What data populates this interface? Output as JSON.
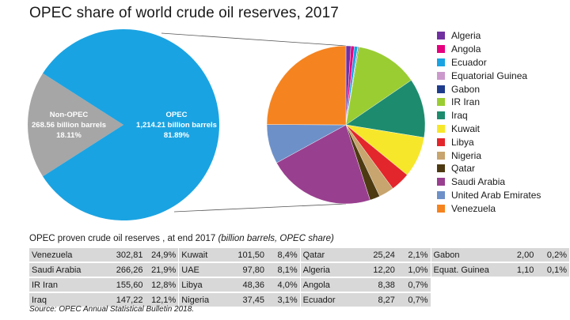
{
  "title": "OPEC share of world crude oil reserves, 2017",
  "chart_data": [
    {
      "type": "pie",
      "slices": [
        {
          "label": "Non-OPEC",
          "value": 268.56,
          "value_text": "268.56 billion barrels",
          "share_text": "18.11%",
          "color": "#a6a6a6"
        },
        {
          "label": "OPEC",
          "value": 1214.21,
          "value_text": "1,214.21 billion barrels",
          "share_text": "81.89%",
          "color": "#1aa3e2"
        }
      ]
    },
    {
      "type": "pie",
      "slices": [
        {
          "label": "Algeria",
          "value": 12.2,
          "color": "#7030a0"
        },
        {
          "label": "Angola",
          "value": 8.38,
          "color": "#e6007e"
        },
        {
          "label": "Ecuador",
          "value": 8.27,
          "color": "#1aa3e2"
        },
        {
          "label": "Equatorial Guinea",
          "value": 1.1,
          "color": "#cc99cc"
        },
        {
          "label": "Gabon",
          "value": 2.0,
          "color": "#1f3c8c"
        },
        {
          "label": "IR Iran",
          "value": 155.6,
          "color": "#9acd32"
        },
        {
          "label": "Iraq",
          "value": 147.22,
          "color": "#1d8c6e"
        },
        {
          "label": "Kuwait",
          "value": 101.5,
          "color": "#f7e72a"
        },
        {
          "label": "Libya",
          "value": 48.36,
          "color": "#e3262b"
        },
        {
          "label": "Nigeria",
          "value": 37.45,
          "color": "#c8a46e"
        },
        {
          "label": "Qatar",
          "value": 25.24,
          "color": "#4d3a12"
        },
        {
          "label": "Saudi Arabia",
          "value": 266.26,
          "color": "#993f8f"
        },
        {
          "label": "United Arab Emirates",
          "value": 97.8,
          "color": "#6d90c8"
        },
        {
          "label": "Venezuela",
          "value": 302.81,
          "color": "#f5831f"
        }
      ]
    }
  ],
  "table": {
    "caption_main": "OPEC proven crude oil reserves , at end 2017",
    "caption_italic": "(billion barrels, OPEC share)",
    "rows": [
      [
        [
          "Venezuela",
          "302,81",
          "24,9%"
        ],
        [
          "Kuwait",
          "101,50",
          "8,4%"
        ],
        [
          "Qatar",
          "25,24",
          "2,1%"
        ],
        [
          "Gabon",
          "2,00",
          "0,2%"
        ]
      ],
      [
        [
          "Saudi Arabia",
          "266,26",
          "21,9%"
        ],
        [
          "UAE",
          "97,80",
          "8,1%"
        ],
        [
          "Algeria",
          "12,20",
          "1,0%"
        ],
        [
          "Equat. Guinea",
          "1,10",
          "0,1%"
        ]
      ],
      [
        [
          "IR Iran",
          "155,60",
          "12,8%"
        ],
        [
          "Libya",
          "48,36",
          "4,0%"
        ],
        [
          "Angola",
          "8,38",
          "0,7%"
        ],
        [
          "",
          "",
          ""
        ]
      ],
      [
        [
          "Iraq",
          "147,22",
          "12,1%"
        ],
        [
          "Nigeria",
          "37,45",
          "3,1%"
        ],
        [
          "Ecuador",
          "8,27",
          "0,7%"
        ],
        [
          "",
          "",
          ""
        ]
      ]
    ]
  },
  "source": "Source: OPEC Annual Statistical Bulletin 2018."
}
